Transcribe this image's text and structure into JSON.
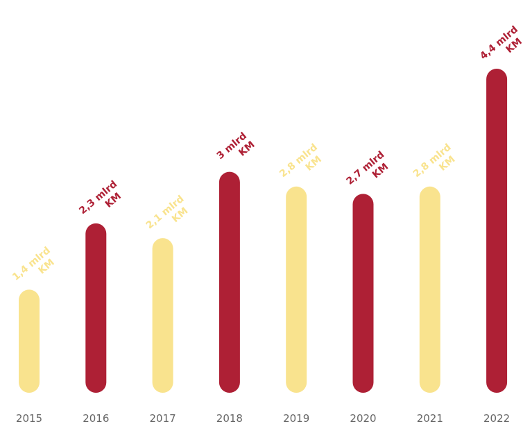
{
  "chart_data": {
    "type": "bar",
    "categories": [
      "2015",
      "2016",
      "2017",
      "2018",
      "2019",
      "2020",
      "2021",
      "2022"
    ],
    "values": [
      1.4,
      2.3,
      2.1,
      3.0,
      2.8,
      2.7,
      2.8,
      4.4
    ],
    "unit": "mlrd KM",
    "data_labels": [
      {
        "line1": "1,4 mlrd",
        "line2": "KM"
      },
      {
        "line1": "2,3 mlrd",
        "line2": "KM"
      },
      {
        "line1": "2,1 mlrd",
        "line2": "KM"
      },
      {
        "line1": "3 mlrd",
        "line2": "KM"
      },
      {
        "line1": "2,8 mlrd",
        "line2": "KM"
      },
      {
        "line1": "2,7 mlrd",
        "line2": "KM"
      },
      {
        "line1": "2,8 mlrd",
        "line2": "KM"
      },
      {
        "line1": "4,4 mlrd",
        "line2": "KM"
      }
    ],
    "bar_colors": [
      "#F9E38E",
      "#AE2035",
      "#F9E38E",
      "#AE2035",
      "#F9E38E",
      "#AE2035",
      "#F9E38E",
      "#AE2035"
    ],
    "title": "",
    "xlabel": "",
    "ylabel": "",
    "grid": false,
    "legend": "none",
    "rounded_bars": true
  }
}
